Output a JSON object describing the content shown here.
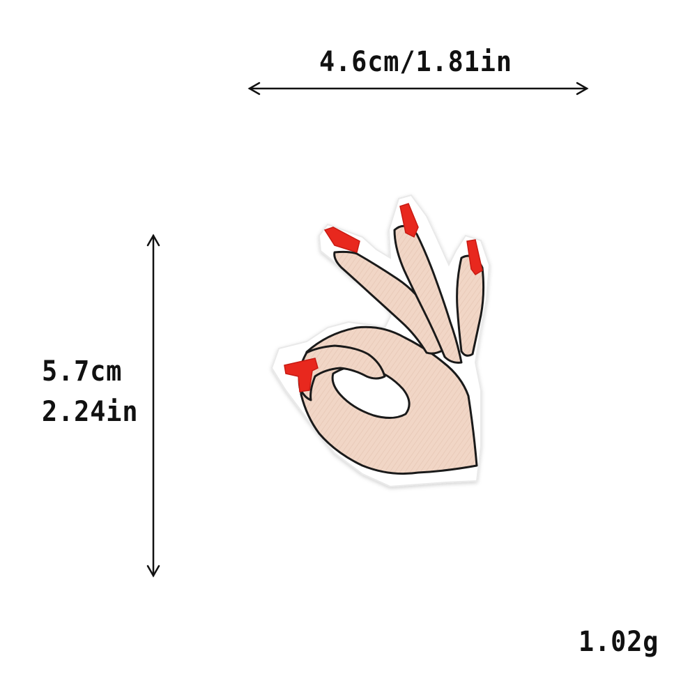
{
  "dimensions": {
    "width_text": "4.6cm/1.81in",
    "height_cm_text": "5.7cm",
    "height_in_text": "2.24in",
    "weight_text": "1.02g"
  },
  "product": {
    "icon": "ok-hand-gesture-patch",
    "colors": {
      "skin": "#f1d6c6",
      "nail": "#e8281e",
      "outline": "#1a1a1a",
      "backing": "#ffffff"
    }
  }
}
